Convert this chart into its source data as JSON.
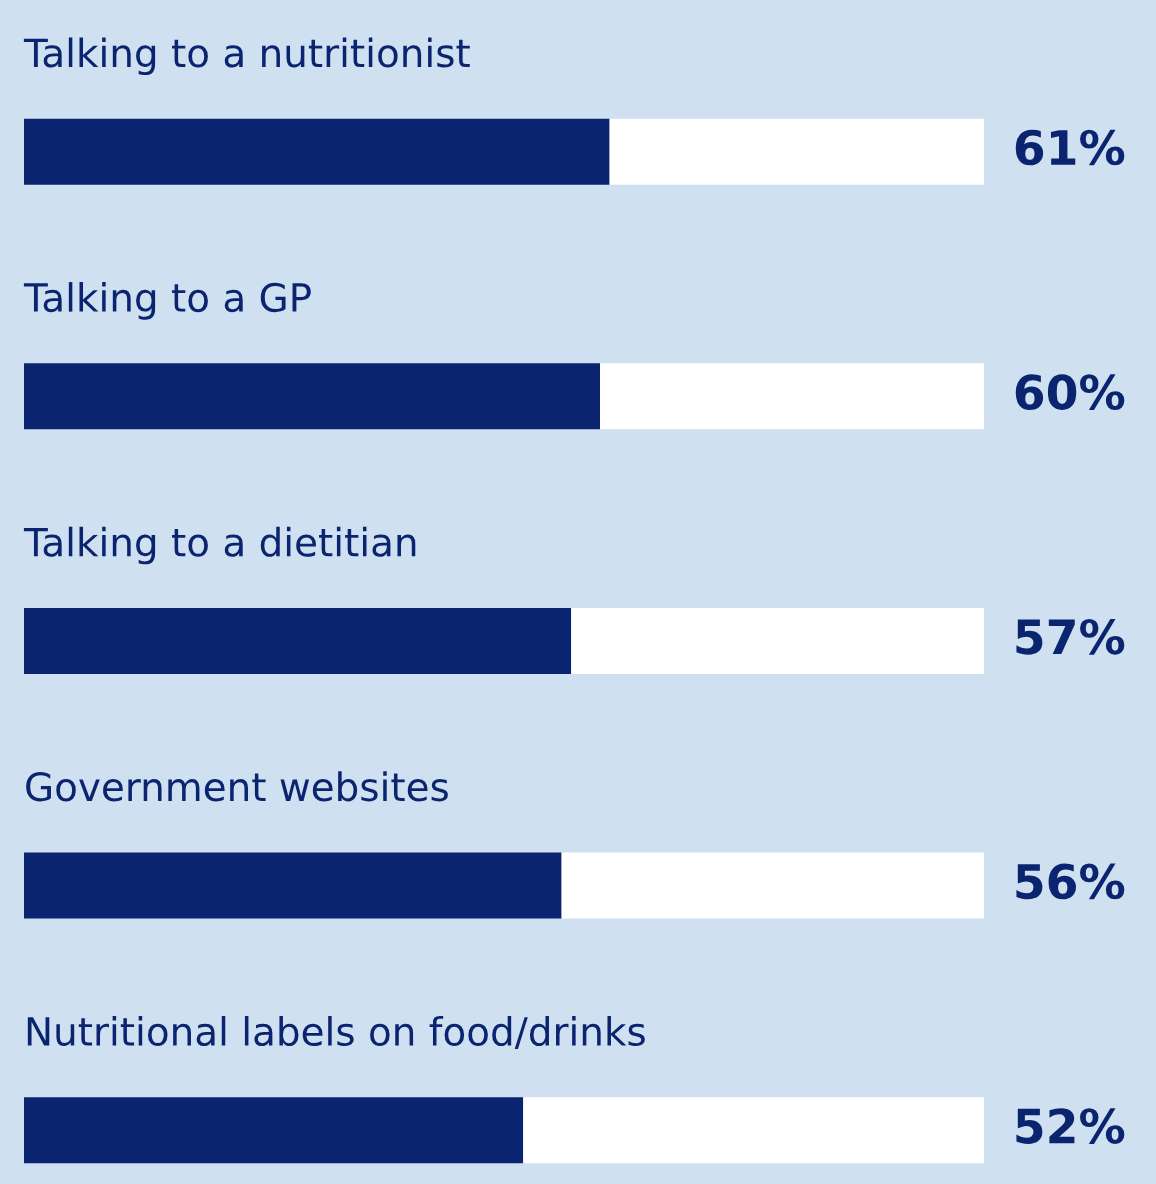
{
  "chart_data": {
    "type": "bar",
    "orientation": "horizontal",
    "stacked": true,
    "categories": [
      "Talking to a nutritionist",
      "Talking to a GP",
      "Talking to a dietitian",
      "Government websites",
      "Nutritional labels on food/drinks"
    ],
    "series": [
      {
        "color": "#0b2470",
        "values": [
          61,
          60,
          57,
          56,
          52
        ],
        "value_labels": [
          "61%",
          "60%",
          "57%",
          "56%",
          "52%"
        ]
      },
      {
        "color": "#ffffff",
        "values": [
          39,
          40,
          43,
          44,
          48
        ]
      }
    ],
    "xlim": [
      0,
      100
    ]
  }
}
